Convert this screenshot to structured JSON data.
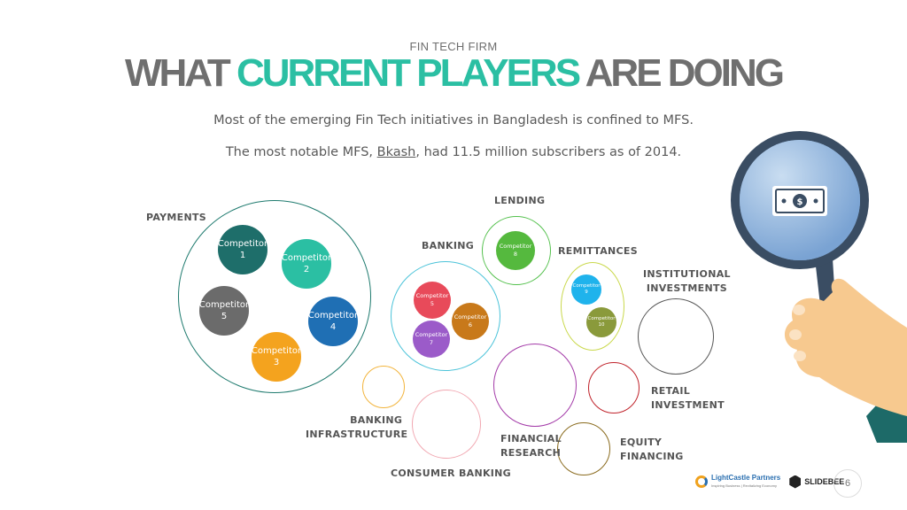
{
  "header": {
    "kicker": "FIN TECH FIRM",
    "title_part1": "WHAT",
    "title_part2": "CURRENT PLAYERS",
    "title_part3": "ARE DOING",
    "subtitle1": "Most of the emerging Fin Tech initiatives in Bangladesh is confined to MFS.",
    "subtitle2_pre": "The most notable MFS,",
    "subtitle2_brand": "Bkash",
    "subtitle2_post": ", had 11.5 million subscribers as of 2014."
  },
  "colors": {
    "accent": "#2bbfa3",
    "title_gray": "#6f6f6f"
  },
  "segments": {
    "payments": "PAYMENTS",
    "lending": "LENDING",
    "banking": "BANKING",
    "remittances": "REMITTANCES",
    "institutional_1": "INSTITUTIONAL",
    "institutional_2": "INVESTMENTS",
    "retail_1": "RETAIL",
    "retail_2": "INVESTMENT",
    "banking_infra_1": "BANKING",
    "banking_infra_2": "INFRASTRUCTURE",
    "financial_research_1": "FINANCIAL",
    "financial_research_2": "RESEARCH",
    "equity_1": "EQUITY",
    "equity_2": "FINANCING",
    "consumer_banking": "CONSUMER BANKING"
  },
  "competitors": {
    "word": "Competitor",
    "c1": "1",
    "c2": "2",
    "c3": "3",
    "c4": "4",
    "c5": "5",
    "c6": "6",
    "c7": "7",
    "c8": "8",
    "c9": "9",
    "c10": "10"
  },
  "footer": {
    "logo_name": "LightCastle Partners",
    "logo_tagline": "Inspiring Business | Revitalizing Economy",
    "logo2": "SLIDEBEE",
    "page_number": "6"
  },
  "icons": {
    "illustration": "hand-magnifier-money-icon",
    "logo_mark": "lightcastle-logo-icon",
    "logo2_mark": "slidebee-logo-icon"
  }
}
